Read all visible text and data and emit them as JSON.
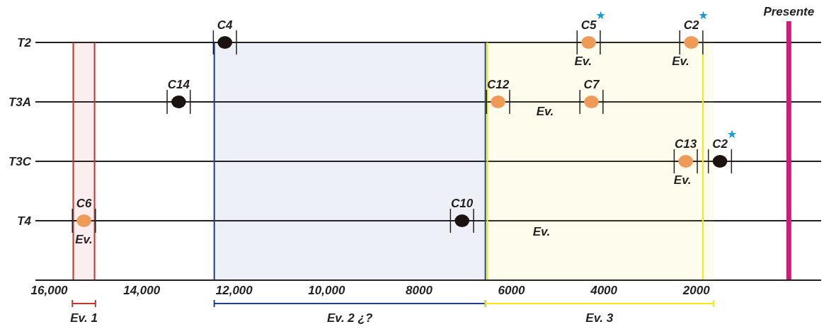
{
  "chart_data": {
    "type": "scatter",
    "orientation": "horizontal",
    "categories": [
      "T2",
      "T3A",
      "T3C",
      "T4"
    ],
    "xlim": [
      16300,
      -700
    ],
    "xticks": [
      {
        "value": 16000,
        "label": "16,000"
      },
      {
        "value": 14000,
        "label": "14,000"
      },
      {
        "value": 12000,
        "label": "12,000"
      },
      {
        "value": 10000,
        "label": "10,000"
      },
      8000,
      6000,
      4000,
      2000
    ],
    "grid": "y",
    "marker": "circle",
    "series": [
      {
        "color": "#f09a57",
        "values": [
          4330,
          6290,
          2230,
          15250
        ],
        "errors": [
          250,
          250,
          250,
          250
        ],
        "value_labels": [
          "C5",
          "C12",
          "C13",
          "C6"
        ]
      },
      {
        "color": "#f09a57",
        "values": [
          2110,
          4270,
          null,
          null
        ],
        "errors": [
          250,
          250,
          null,
          null
        ],
        "value_labels": [
          "C2",
          "C7",
          null,
          null
        ]
      },
      {
        "color": "#1a1311",
        "values": [
          12200,
          13200,
          1490,
          7070
        ],
        "errors": [
          250,
          250,
          250,
          250
        ],
        "value_labels": [
          "C4",
          "C14",
          "C2",
          "C10"
        ]
      }
    ],
    "ref_lines": [
      {
        "axis": "x",
        "value": 15480,
        "color": "#c0392b"
      },
      {
        "axis": "x",
        "value": 15020,
        "color": "#c0392b"
      },
      {
        "axis": "x",
        "value": 12430,
        "color": "#1f3f8f"
      },
      {
        "axis": "x",
        "value": 6565,
        "color": "#1f3f8f"
      },
      {
        "axis": "x",
        "value": 6520,
        "color": "#f5e614"
      },
      {
        "axis": "x",
        "value": 1860,
        "color": "#f5e614"
      },
      {
        "axis": "x",
        "value": 0,
        "label": "Presente",
        "color": "#d6157f"
      }
    ],
    "bands": [
      {
        "axis": "x",
        "from": 15500,
        "to": 15000,
        "label": "Ev. 1",
        "color": "#c0392b"
      },
      {
        "axis": "x",
        "from": 12430,
        "to": 6565,
        "label": "Ev. 2 ¿?",
        "color": "#1f3f8f"
      },
      {
        "axis": "x",
        "from": 6565,
        "to": 1630,
        "label": "Ev. 3",
        "color": "#f5e614"
      }
    ],
    "annotations": [
      {
        "text": "Ev.",
        "x": 15250,
        "y": "T4"
      },
      {
        "text": "Ev.",
        "x": 4450,
        "y": "T2"
      },
      {
        "text": "Ev.",
        "x": 2340,
        "y": "T2"
      },
      "Ev.",
      {
        "text": "Ev.",
        "x": 2300,
        "y": "T3C"
      },
      "Ev."
    ]
  }
}
